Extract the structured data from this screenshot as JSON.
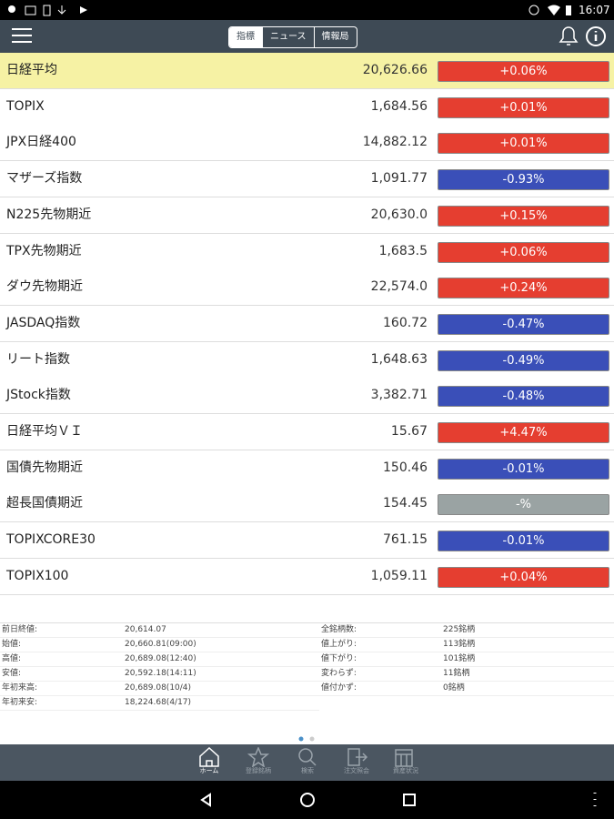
{
  "status_bar": {
    "time": "16:07"
  },
  "header": {
    "tabs": [
      "指標",
      "ニュース",
      "情報局"
    ]
  },
  "list": [
    {
      "name": "日経平均",
      "value": "20,626.66",
      "change": "+0.06%"
    },
    {
      "name": "TOPIX",
      "value": "1,684.56",
      "change": "+0.01%"
    },
    {
      "name": "JPX日経400",
      "value": "14,882.12",
      "change": "+0.01%"
    },
    {
      "name": "マザーズ指数",
      "value": "1,091.77",
      "change": "-0.93%"
    },
    {
      "name": "N225先物期近",
      "value": "20,630.0",
      "change": "+0.15%"
    },
    {
      "name": "TPX先物期近",
      "value": "1,683.5",
      "change": "+0.06%"
    },
    {
      "name": "ダウ先物期近",
      "value": "22,574.0",
      "change": "+0.24%"
    },
    {
      "name": "JASDAQ指数",
      "value": "160.72",
      "change": "-0.47%"
    },
    {
      "name": "リート指数",
      "value": "1,648.63",
      "change": "-0.49%"
    },
    {
      "name": "JStock指数",
      "value": "3,382.71",
      "change": "-0.48%"
    },
    {
      "name": "日経平均ＶＩ",
      "value": "15.67",
      "change": "+4.47%"
    },
    {
      "name": "国債先物期近",
      "value": "150.46",
      "change": "-0.01%"
    },
    {
      "name": "超長国債期近",
      "value": "154.45",
      "change": "-%"
    },
    {
      "name": "TOPIXCORE30",
      "value": "761.15",
      "change": "-0.01%"
    },
    {
      "name": "TOPIX100",
      "value": "1,059.11",
      "change": "+0.04%"
    }
  ],
  "summary": {
    "left": [
      [
        "前日終値:",
        "20,614.07"
      ],
      [
        "始値:",
        "20,660.81(09:00)"
      ],
      [
        "高値:",
        "20,689.08(12:40)"
      ],
      [
        "安値:",
        "20,592.18(14:11)"
      ],
      [
        "年初来高:",
        "20,689.08(10/4)"
      ],
      [
        "年初来安:",
        "18,224.68(4/17)"
      ]
    ],
    "right": [
      [
        "全銘柄数:",
        "225銘柄"
      ],
      [
        "値上がり:",
        "113銘柄"
      ],
      [
        "値下がり:",
        "101銘柄"
      ],
      [
        "変わらず:",
        "11銘柄"
      ],
      [
        "値付かず:",
        "0銘柄"
      ]
    ]
  },
  "bottom_tabs": [
    "ホーム",
    "登録銘柄",
    "検索",
    "注文照会",
    "資産状況"
  ]
}
